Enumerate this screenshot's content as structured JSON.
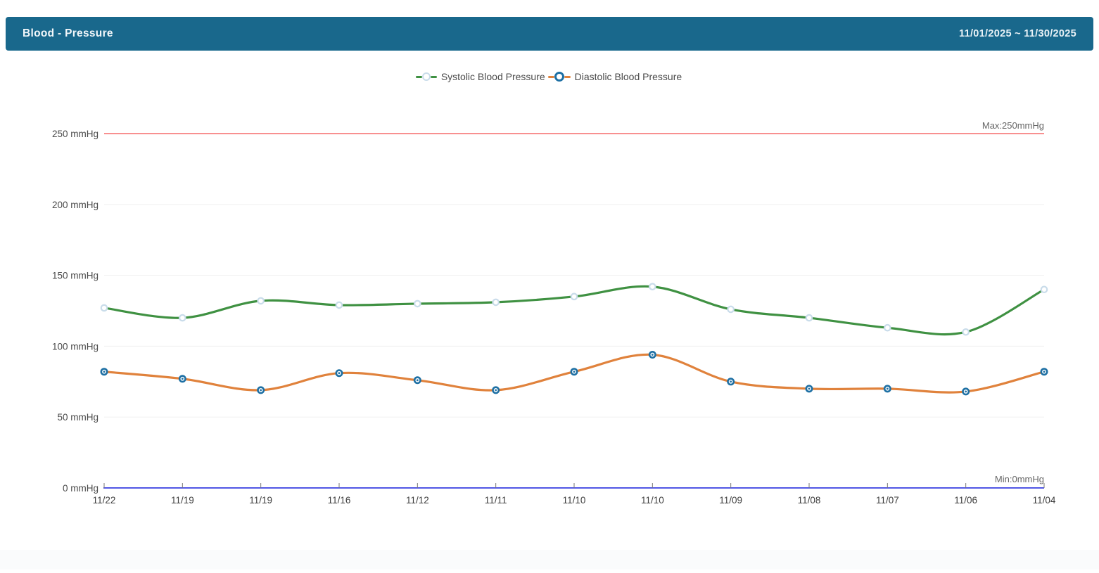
{
  "header": {
    "title": "Blood - Pressure",
    "date_range": "11/01/2025 ~ 11/30/2025",
    "bg_color": "#19688c"
  },
  "legend": [
    {
      "label": "Systolic Blood Pressure",
      "line_color": "#3f9142",
      "marker_border": "#c9dcea",
      "marker_fill": "#ffffff"
    },
    {
      "label": "Diastolic Blood Pressure",
      "line_color": "#e0823c",
      "marker_border": "#1e70a4",
      "marker_fill": "#ffffff"
    }
  ],
  "chart_data": {
    "type": "line",
    "title": "Blood - Pressure",
    "x_labels": [
      "11/22",
      "11/19",
      "11/19",
      "11/16",
      "11/12",
      "11/11",
      "11/10",
      "11/10",
      "11/09",
      "11/08",
      "11/07",
      "11/06",
      "11/04"
    ],
    "y_ticks": [
      "250 mmHg",
      "200 mmHg",
      "150 mmHg",
      "100 mmHg",
      "50 mmHg",
      "0 mmHg"
    ],
    "y_tick_values": [
      250,
      200,
      150,
      100,
      50,
      0
    ],
    "ylim": [
      0,
      250
    ],
    "unit": "mmHg",
    "grid": true,
    "legend_position": "top-center",
    "series": [
      {
        "name": "Systolic Blood Pressure",
        "values": [
          127,
          120,
          132,
          129,
          130,
          131,
          135,
          142,
          126,
          120,
          113,
          110,
          140
        ],
        "color": "#3f9142",
        "marker": {
          "border": "#c9dcea",
          "fill": "#ffffff",
          "center_dot": false
        }
      },
      {
        "name": "Diastolic Blood Pressure",
        "values": [
          82,
          77,
          69,
          81,
          76,
          69,
          82,
          94,
          75,
          70,
          70,
          68,
          82
        ],
        "color": "#e0823c",
        "marker": {
          "border": "#1e70a4",
          "fill": "#ffffff",
          "center_dot": true
        }
      }
    ],
    "max_line": {
      "value": 250,
      "label": "Max:250mmHg",
      "color": "#f56c6c"
    },
    "min_line": {
      "value": 0,
      "label": "Min:0mmHg",
      "color": "#5156e5"
    },
    "axis_text_color": "#4a4a4a",
    "grid_color": "#f0f0f0"
  }
}
